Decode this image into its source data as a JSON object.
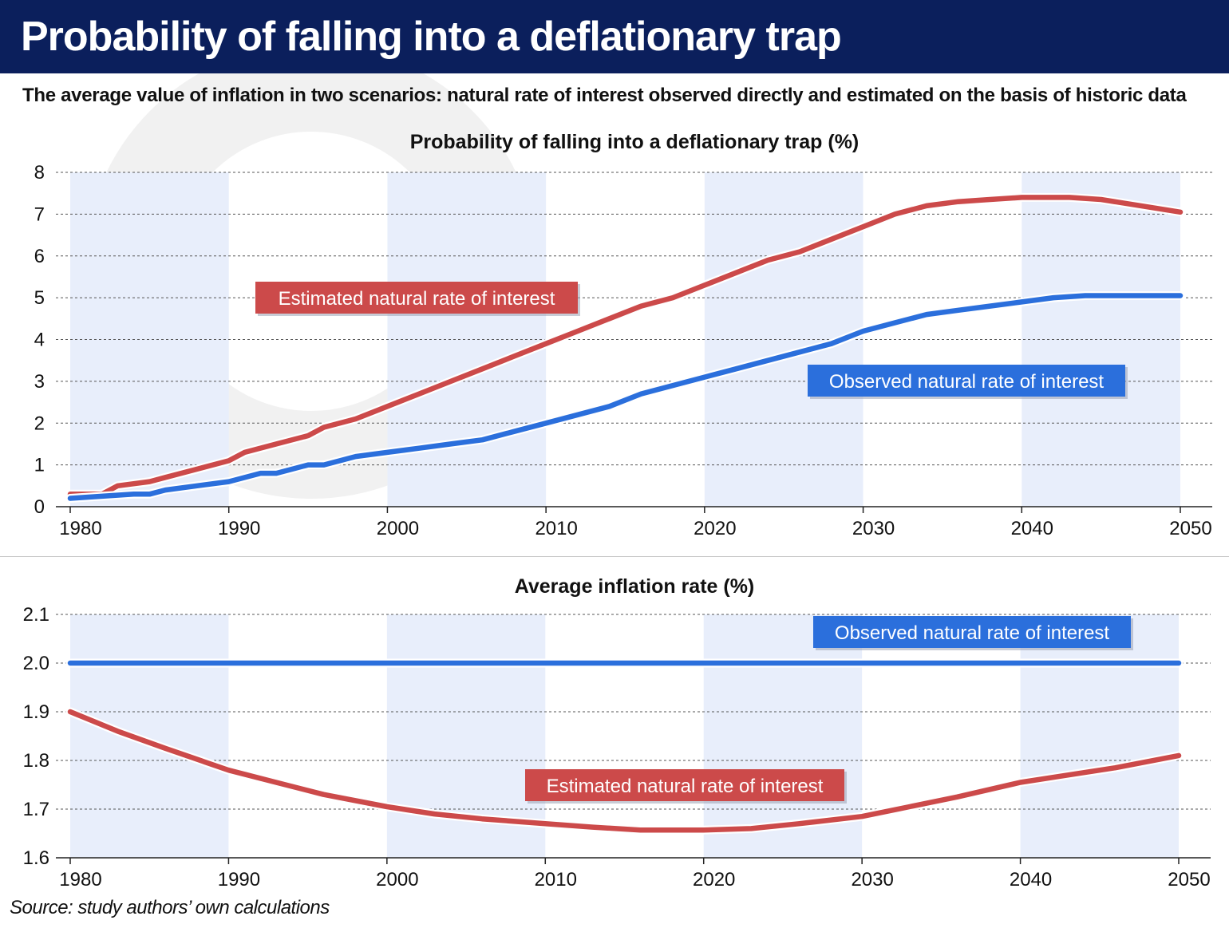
{
  "header": {
    "title": "Probability of falling into a deflationary trap",
    "subtitle": "The average value of inflation in two scenarios: natural rate of interest observed directly and estimated on the basis of historic data"
  },
  "colors": {
    "header_bg": "#0b1f5c",
    "estimated": "#cc4a4a",
    "observed": "#2b6fdc",
    "band": "#e8eefb"
  },
  "source": "Source: study authors’ own calculations",
  "chart_data": [
    {
      "type": "line",
      "title": "Probability of falling into a deflationary trap (%)",
      "x_ticks": [
        1980,
        1990,
        2000,
        2010,
        2020,
        2030,
        2040,
        2050
      ],
      "y_ticks": [
        0,
        1,
        2,
        3,
        4,
        5,
        6,
        7,
        8
      ],
      "xlim": [
        1980,
        2050
      ],
      "ylim": [
        0,
        8
      ],
      "grid": true,
      "shaded_decades": [
        [
          1980,
          1990
        ],
        [
          2000,
          2010
        ],
        [
          2020,
          2030
        ],
        [
          2040,
          2050
        ]
      ],
      "series": [
        {
          "name": "Estimated natural rate of interest",
          "color": "#cc4a4a",
          "x": [
            1980,
            1982,
            1983,
            1985,
            1986,
            1988,
            1990,
            1991,
            1993,
            1995,
            1996,
            1998,
            2000,
            2002,
            2004,
            2006,
            2008,
            2010,
            2012,
            2014,
            2016,
            2018,
            2020,
            2022,
            2024,
            2026,
            2028,
            2030,
            2032,
            2034,
            2036,
            2038,
            2040,
            2043,
            2045,
            2050
          ],
          "y": [
            0.3,
            0.3,
            0.5,
            0.6,
            0.7,
            0.9,
            1.1,
            1.3,
            1.5,
            1.7,
            1.9,
            2.1,
            2.4,
            2.7,
            3.0,
            3.3,
            3.6,
            3.9,
            4.2,
            4.5,
            4.8,
            5.0,
            5.3,
            5.6,
            5.9,
            6.1,
            6.4,
            6.7,
            7.0,
            7.2,
            7.3,
            7.35,
            7.4,
            7.4,
            7.35,
            7.05
          ]
        },
        {
          "name": "Observed natural rate of interest",
          "color": "#2b6fdc",
          "x": [
            1980,
            1982,
            1984,
            1985,
            1986,
            1988,
            1990,
            1992,
            1993,
            1994,
            1995,
            1996,
            1998,
            2000,
            2002,
            2004,
            2006,
            2008,
            2010,
            2012,
            2014,
            2016,
            2018,
            2020,
            2022,
            2024,
            2026,
            2028,
            2030,
            2032,
            2034,
            2036,
            2038,
            2040,
            2042,
            2044,
            2050
          ],
          "y": [
            0.2,
            0.25,
            0.3,
            0.3,
            0.4,
            0.5,
            0.6,
            0.8,
            0.8,
            0.9,
            1.0,
            1.0,
            1.2,
            1.3,
            1.4,
            1.5,
            1.6,
            1.8,
            2.0,
            2.2,
            2.4,
            2.7,
            2.9,
            3.1,
            3.3,
            3.5,
            3.7,
            3.9,
            4.2,
            4.4,
            4.6,
            4.7,
            4.8,
            4.9,
            5.0,
            5.05,
            5.05
          ]
        }
      ],
      "labels": {
        "estimated": "Estimated natural rate of interest",
        "observed": "Observed natural rate of interest"
      }
    },
    {
      "type": "line",
      "title": "Average inflation rate (%)",
      "x_ticks": [
        1980,
        1990,
        2000,
        2010,
        2020,
        2030,
        2040,
        2050
      ],
      "y_ticks": [
        "1.6",
        "1.7",
        "1.8",
        "1.9",
        "2.0",
        "2.1"
      ],
      "xlim": [
        1980,
        2050
      ],
      "ylim": [
        1.6,
        2.1
      ],
      "grid": true,
      "shaded_decades": [
        [
          1980,
          1990
        ],
        [
          2000,
          2010
        ],
        [
          2020,
          2030
        ],
        [
          2040,
          2050
        ]
      ],
      "series": [
        {
          "name": "Observed natural rate of interest",
          "color": "#2b6fdc",
          "x": [
            1980,
            2050
          ],
          "y": [
            2.0,
            2.0
          ]
        },
        {
          "name": "Estimated natural rate of interest",
          "color": "#cc4a4a",
          "x": [
            1980,
            1983,
            1986,
            1990,
            1993,
            1996,
            2000,
            2003,
            2006,
            2010,
            2013,
            2016,
            2020,
            2023,
            2026,
            2030,
            2033,
            2036,
            2040,
            2043,
            2046,
            2050
          ],
          "y": [
            1.9,
            1.86,
            1.825,
            1.78,
            1.755,
            1.73,
            1.705,
            1.69,
            1.68,
            1.67,
            1.663,
            1.657,
            1.657,
            1.66,
            1.67,
            1.685,
            1.705,
            1.725,
            1.755,
            1.77,
            1.785,
            1.81
          ]
        }
      ],
      "labels": {
        "estimated": "Estimated natural rate of interest",
        "observed": "Observed natural rate of interest"
      }
    }
  ]
}
